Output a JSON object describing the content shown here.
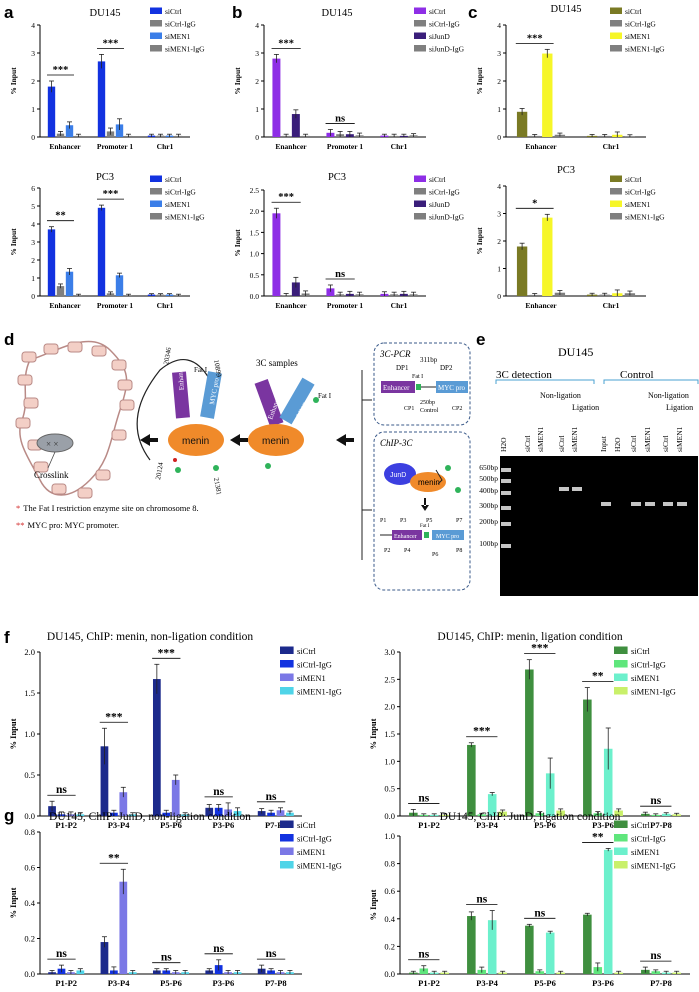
{
  "panel_letters": {
    "a": "a",
    "b": "b",
    "c": "c",
    "d": "d",
    "e": "e",
    "f": "f",
    "g": "g"
  },
  "colors": {
    "dark_blue": "#1c2a8c",
    "blue": "#1232e0",
    "mid_blue": "#3b7ee8",
    "blue2": "#3c3fe0",
    "lavender": "#7b78e6",
    "cyan": "#4fd4e8",
    "gray": "#7f7f7f",
    "purple": "#8e2ee6",
    "dark_purple": "#3a1e7a",
    "olive": "#7a7a24",
    "yellow": "#f6f628",
    "green_dark": "#3f8f3f",
    "green_light": "#5fe67c",
    "mint": "#6cf0cc",
    "lime": "#c9f06a",
    "dia_purple": "#7a35a0",
    "dia_blue": "#5a9bd5",
    "dia_orange": "#f08a2a",
    "dia_green": "#2fb35a",
    "red": "#d02020"
  },
  "chart_data": [
    {
      "id": "a1",
      "type": "bar",
      "title": "DU145",
      "ylabel": "% Input",
      "ylim": [
        0,
        4
      ],
      "yticks": [
        "0",
        "1",
        "2",
        "3",
        "4"
      ],
      "categories": [
        "Enhancer",
        "Promoter 1",
        "Chr1"
      ],
      "series": [
        {
          "name": "siCtrl",
          "color": "#1232e0",
          "values": [
            1.8,
            2.7,
            0.05
          ],
          "errors": [
            0.2,
            0.25,
            0.05
          ]
        },
        {
          "name": "siCtrl-IgG",
          "color": "#7f7f7f",
          "values": [
            0.12,
            0.2,
            0.05
          ],
          "errors": [
            0.08,
            0.12,
            0.05
          ]
        },
        {
          "name": "siMEN1",
          "color": "#3b7ee8",
          "values": [
            0.42,
            0.45,
            0.05
          ],
          "errors": [
            0.12,
            0.2,
            0.05
          ]
        },
        {
          "name": "siMEN1-IgG",
          "color": "#7f7f7f",
          "values": [
            0.04,
            0.04,
            0.04
          ],
          "errors": [
            0.06,
            0.06,
            0.06
          ]
        }
      ],
      "annotations": [
        {
          "text": "***",
          "category": 0
        },
        {
          "text": "***",
          "category": 1
        }
      ]
    },
    {
      "id": "b1",
      "type": "bar",
      "title": "DU145",
      "ylabel": "% Input",
      "ylim": [
        0,
        4
      ],
      "yticks": [
        "0",
        "1",
        "2",
        "3",
        "4"
      ],
      "categories": [
        "Enanhcer",
        "Promoter 1",
        "Chr1"
      ],
      "series": [
        {
          "name": "siCtrl",
          "color": "#8e2ee6",
          "values": [
            2.8,
            0.15,
            0.05
          ],
          "errors": [
            0.15,
            0.12,
            0.05
          ]
        },
        {
          "name": "siCtrl-IgG",
          "color": "#7f7f7f",
          "values": [
            0.04,
            0.1,
            0.04
          ],
          "errors": [
            0.06,
            0.1,
            0.06
          ]
        },
        {
          "name": "siJunD",
          "color": "#3a1e7a",
          "values": [
            0.82,
            0.1,
            0.04
          ],
          "errors": [
            0.15,
            0.1,
            0.06
          ]
        },
        {
          "name": "siJunD-IgG",
          "color": "#7f7f7f",
          "values": [
            0.04,
            0.06,
            0.06
          ],
          "errors": [
            0.06,
            0.08,
            0.06
          ]
        }
      ],
      "annotations": [
        {
          "text": "***",
          "category": 0
        },
        {
          "text": "ns",
          "category": 1
        }
      ]
    },
    {
      "id": "c1",
      "type": "bar",
      "title": "DU145",
      "ylabel": "% Input",
      "ylim": [
        0,
        4
      ],
      "yticks": [
        "0",
        "1",
        "2",
        "3",
        "4"
      ],
      "categories": [
        "Enhancer",
        "Chr1"
      ],
      "series": [
        {
          "name": "siCtrl",
          "color": "#7a7a24",
          "values": [
            0.9,
            0.04
          ],
          "errors": [
            0.12,
            0.05
          ]
        },
        {
          "name": "siCtrl-IgG",
          "color": "#7f7f7f",
          "values": [
            0.04,
            0.04
          ],
          "errors": [
            0.05,
            0.05
          ]
        },
        {
          "name": "siMEN1",
          "color": "#f6f628",
          "values": [
            2.98,
            0.08
          ],
          "errors": [
            0.15,
            0.1
          ]
        },
        {
          "name": "siMEN1-IgG",
          "color": "#7f7f7f",
          "values": [
            0.08,
            0.03
          ],
          "errors": [
            0.06,
            0.05
          ]
        }
      ],
      "annotations": [
        {
          "text": "***",
          "category": 0
        }
      ]
    },
    {
      "id": "a2",
      "type": "bar",
      "title": "PC3",
      "ylabel": "% Input",
      "ylim": [
        0,
        6
      ],
      "yticks": [
        "0",
        "1",
        "2",
        "3",
        "4",
        "5",
        "6"
      ],
      "categories": [
        "Enhancer",
        "Promoter 1",
        "Chr1"
      ],
      "series": [
        {
          "name": "siCtrl",
          "color": "#1232e0",
          "values": [
            3.7,
            4.9,
            0.08
          ],
          "errors": [
            0.15,
            0.15,
            0.05
          ]
        },
        {
          "name": "siCtrl-IgG",
          "color": "#7f7f7f",
          "values": [
            0.55,
            0.15,
            0.08
          ],
          "errors": [
            0.12,
            0.08,
            0.05
          ]
        },
        {
          "name": "siMEN1",
          "color": "#3b7ee8",
          "values": [
            1.35,
            1.15,
            0.08
          ],
          "errors": [
            0.18,
            0.12,
            0.05
          ]
        },
        {
          "name": "siMEN1-IgG",
          "color": "#7f7f7f",
          "values": [
            0.05,
            0.05,
            0.05
          ],
          "errors": [
            0.05,
            0.05,
            0.05
          ]
        }
      ],
      "annotations": [
        {
          "text": "**",
          "category": 0
        },
        {
          "text": "***",
          "category": 1
        }
      ]
    },
    {
      "id": "b2",
      "type": "bar",
      "title": "PC3",
      "ylabel": "% Input",
      "ylim": [
        0,
        2.5
      ],
      "yticks": [
        "0.0",
        "0.5",
        "1.0",
        "1.5",
        "2.0",
        "2.5"
      ],
      "categories": [
        "Enanhcer",
        "Promoter 1",
        "Chr1"
      ],
      "series": [
        {
          "name": "siCtrl",
          "color": "#8e2ee6",
          "values": [
            1.95,
            0.18,
            0.05
          ],
          "errors": [
            0.12,
            0.08,
            0.05
          ]
        },
        {
          "name": "siCtrl-IgG",
          "color": "#7f7f7f",
          "values": [
            0.02,
            0.04,
            0.04
          ],
          "errors": [
            0.04,
            0.05,
            0.05
          ]
        },
        {
          "name": "siJunD",
          "color": "#3a1e7a",
          "values": [
            0.32,
            0.05,
            0.05
          ],
          "errors": [
            0.12,
            0.06,
            0.06
          ]
        },
        {
          "name": "siJunD-IgG",
          "color": "#7f7f7f",
          "values": [
            0.06,
            0.04,
            0.04
          ],
          "errors": [
            0.06,
            0.05,
            0.05
          ]
        }
      ],
      "annotations": [
        {
          "text": "***",
          "category": 0
        },
        {
          "text": "ns",
          "category": 1
        }
      ]
    },
    {
      "id": "c2",
      "type": "bar",
      "title": "PC3",
      "ylabel": "% Input",
      "ylim": [
        0,
        4
      ],
      "yticks": [
        "0",
        "1",
        "2",
        "3",
        "4"
      ],
      "categories": [
        "Enhancer",
        "Chr1"
      ],
      "series": [
        {
          "name": "siCtrl",
          "color": "#7a7a24",
          "values": [
            1.8,
            0.05
          ],
          "errors": [
            0.12,
            0.05
          ]
        },
        {
          "name": "siCtrl-IgG",
          "color": "#7f7f7f",
          "values": [
            0.04,
            0.05
          ],
          "errors": [
            0.05,
            0.05
          ]
        },
        {
          "name": "siMEN1",
          "color": "#f6f628",
          "values": [
            2.85,
            0.1
          ],
          "errors": [
            0.12,
            0.12
          ]
        },
        {
          "name": "siMEN1-IgG",
          "color": "#7f7f7f",
          "values": [
            0.12,
            0.1
          ],
          "errors": [
            0.08,
            0.08
          ]
        }
      ],
      "annotations": [
        {
          "text": "*",
          "category": 0
        }
      ]
    },
    {
      "id": "f1",
      "type": "bar",
      "title": "DU145, ChIP: menin, non-ligation condition",
      "ylabel": "% Input",
      "ylim": [
        0,
        2
      ],
      "yticks": [
        "0.0",
        "0.5",
        "1.0",
        "1.5",
        "2.0"
      ],
      "categories": [
        "P1-P2",
        "P3-P4",
        "P5-P6",
        "P3-P6",
        "P7-P8"
      ],
      "series": [
        {
          "name": "siCtrl",
          "color": "#1c2a8c",
          "values": [
            0.12,
            0.85,
            1.67,
            0.1,
            0.06
          ],
          "errors": [
            0.06,
            0.22,
            0.18,
            0.04,
            0.03
          ]
        },
        {
          "name": "siCtrl-IgG",
          "color": "#1232e0",
          "values": [
            0.02,
            0.04,
            0.04,
            0.1,
            0.04
          ],
          "errors": [
            0.03,
            0.03,
            0.03,
            0.04,
            0.03
          ]
        },
        {
          "name": "siMEN1",
          "color": "#7b78e6",
          "values": [
            0.02,
            0.29,
            0.44,
            0.08,
            0.07
          ],
          "errors": [
            0.03,
            0.06,
            0.06,
            0.08,
            0.03
          ]
        },
        {
          "name": "siMEN1-IgG",
          "color": "#4fd4e8",
          "values": [
            0.02,
            0.02,
            0.02,
            0.06,
            0.04
          ],
          "errors": [
            0.02,
            0.02,
            0.02,
            0.04,
            0.02
          ]
        }
      ],
      "annotations": [
        {
          "text": "ns",
          "category": 0
        },
        {
          "text": "***",
          "category": 1
        },
        {
          "text": "***",
          "category": 2
        },
        {
          "text": "ns",
          "category": 3
        },
        {
          "text": "ns",
          "category": 4
        }
      ]
    },
    {
      "id": "f2",
      "type": "bar",
      "title": "DU145, ChIP: menin, ligation condition",
      "ylabel": "% Input",
      "ylim": [
        0,
        3
      ],
      "yticks": [
        "0.0",
        "0.5",
        "1.0",
        "1.5",
        "2.0",
        "2.5",
        "3.0"
      ],
      "categories": [
        "P1-P2",
        "P3-P4",
        "P5-P6",
        "P3-P6",
        "P7-P8"
      ],
      "series": [
        {
          "name": "siCtrl",
          "color": "#3f8f3f",
          "values": [
            0.06,
            1.3,
            2.68,
            2.13,
            0.04
          ],
          "errors": [
            0.06,
            0.04,
            0.18,
            0.22,
            0.03
          ]
        },
        {
          "name": "siCtrl-IgG",
          "color": "#5fe67c",
          "values": [
            0.02,
            0.03,
            0.05,
            0.05,
            0.02
          ],
          "errors": [
            0.02,
            0.02,
            0.03,
            0.03,
            0.02
          ]
        },
        {
          "name": "siMEN1",
          "color": "#6cf0cc",
          "values": [
            0.02,
            0.4,
            0.78,
            1.23,
            0.04
          ],
          "errors": [
            0.02,
            0.03,
            0.28,
            0.38,
            0.02
          ]
        },
        {
          "name": "siMEN1-IgG",
          "color": "#c9f06a",
          "values": [
            0.02,
            0.08,
            0.1,
            0.1,
            0.03
          ],
          "errors": [
            0.02,
            0.03,
            0.03,
            0.03,
            0.02
          ]
        }
      ],
      "annotations": [
        {
          "text": "ns",
          "category": 0
        },
        {
          "text": "***",
          "category": 1
        },
        {
          "text": "***",
          "category": 2
        },
        {
          "text": "**",
          "category": 3
        },
        {
          "text": "ns",
          "category": 4
        }
      ]
    },
    {
      "id": "g1",
      "type": "bar",
      "title": "DU145, ChIP: JunD, non-ligation condition",
      "ylabel": "% Input",
      "ylim": [
        0,
        0.8
      ],
      "yticks": [
        "0.0",
        "0.2",
        "0.4",
        "0.6",
        "0.8"
      ],
      "categories": [
        "P1-P2",
        "P3-P4",
        "P5-P6",
        "P3-P6",
        "P7-P8"
      ],
      "series": [
        {
          "name": "siCtrl",
          "color": "#1c2a8c",
          "values": [
            0.01,
            0.18,
            0.02,
            0.02,
            0.03
          ],
          "errors": [
            0.01,
            0.03,
            0.01,
            0.01,
            0.02
          ]
        },
        {
          "name": "siCtrl-IgG",
          "color": "#1232e0",
          "values": [
            0.03,
            0.02,
            0.02,
            0.05,
            0.02
          ],
          "errors": [
            0.02,
            0.02,
            0.01,
            0.03,
            0.01
          ]
        },
        {
          "name": "siMEN1",
          "color": "#7b78e6",
          "values": [
            0.01,
            0.52,
            0.01,
            0.01,
            0.01
          ],
          "errors": [
            0.01,
            0.07,
            0.01,
            0.01,
            0.01
          ]
        },
        {
          "name": "siMEN1-IgG",
          "color": "#4fd4e8",
          "values": [
            0.02,
            0.01,
            0.01,
            0.01,
            0.01
          ],
          "errors": [
            0.01,
            0.01,
            0.01,
            0.01,
            0.01
          ]
        }
      ],
      "annotations": [
        {
          "text": "ns",
          "category": 0
        },
        {
          "text": "**",
          "category": 1
        },
        {
          "text": "ns",
          "category": 2
        },
        {
          "text": "ns",
          "category": 3
        },
        {
          "text": "ns",
          "category": 4
        }
      ]
    },
    {
      "id": "g2",
      "type": "bar",
      "title": "DU145, ChIP: JunD, ligation condition",
      "ylabel": "% Input",
      "ylim": [
        0,
        1
      ],
      "yticks": [
        "0.0",
        "0.2",
        "0.4",
        "0.6",
        "0.8",
        "1.0"
      ],
      "categories": [
        "P1-P2",
        "P3-P4",
        "P5-P6",
        "P3-P6",
        "P7-P8"
      ],
      "series": [
        {
          "name": "siCtrl",
          "color": "#3f8f3f",
          "values": [
            0.01,
            0.42,
            0.35,
            0.43,
            0.03
          ],
          "errors": [
            0.01,
            0.03,
            0.01,
            0.01,
            0.02
          ]
        },
        {
          "name": "siCtrl-IgG",
          "color": "#5fe67c",
          "values": [
            0.04,
            0.03,
            0.02,
            0.05,
            0.02
          ],
          "errors": [
            0.02,
            0.02,
            0.01,
            0.03,
            0.01
          ]
        },
        {
          "name": "siMEN1",
          "color": "#6cf0cc",
          "values": [
            0.01,
            0.39,
            0.3,
            0.9,
            0.01
          ],
          "errors": [
            0.01,
            0.07,
            0.01,
            0.01,
            0.01
          ]
        },
        {
          "name": "siMEN1-IgG",
          "color": "#c9f06a",
          "values": [
            0.01,
            0.01,
            0.01,
            0.01,
            0.01
          ],
          "errors": [
            0.01,
            0.01,
            0.01,
            0.01,
            0.01
          ]
        }
      ],
      "annotations": [
        {
          "text": "ns",
          "category": 0
        },
        {
          "text": "ns",
          "category": 1
        },
        {
          "text": "ns",
          "category": 2
        },
        {
          "text": "**",
          "category": 3
        },
        {
          "text": "ns",
          "category": 4
        }
      ]
    }
  ],
  "diagram": {
    "crosslink": "Crosslink",
    "menin": "menin",
    "enhancer": "Enhancer",
    "myc_pro": "MYC pro",
    "fat1": "Fat I",
    "samples_3c": "3C samples",
    "pos1": "20346",
    "pos2": "10899",
    "pos3": "20124",
    "pos4": "21381",
    "box1_title": "3C-PCR",
    "dp1": "DP1",
    "dp2": "DP2",
    "bp311": "311bp",
    "cp1": "CP1",
    "cp2": "CP2",
    "bp250": "250bp",
    "control": "Control",
    "box2_title": "ChIP-3C",
    "jund": "JunD",
    "p1": "P1",
    "p2": "P2",
    "p3": "P3",
    "p4": "P4",
    "p5": "P5",
    "p6": "P6",
    "p7": "P7",
    "p8": "P8",
    "note1_star": "*",
    "note1": "The Fat I restriction enzyme site on chromosome 8.",
    "note2_star": "**",
    "note2": "MYC pro: MYC promoter."
  },
  "gel": {
    "title": "DU145",
    "group1": "3C detection",
    "group2": "Control",
    "nonligation": "Non-ligation",
    "ligation": "Ligation",
    "nonligation2": "Non-ligation",
    "ligation2": "Ligation",
    "lanes": [
      "H2O",
      "siCtrl",
      "siMEN1",
      "siCtrl",
      "siMEN1",
      "Input",
      "H2O",
      "siCtrl",
      "siMEN1",
      "siCtrl",
      "siMEN1"
    ],
    "ladder": [
      "650bp",
      "500bp",
      "400bp",
      "300bp",
      "200bp",
      "100bp"
    ]
  }
}
